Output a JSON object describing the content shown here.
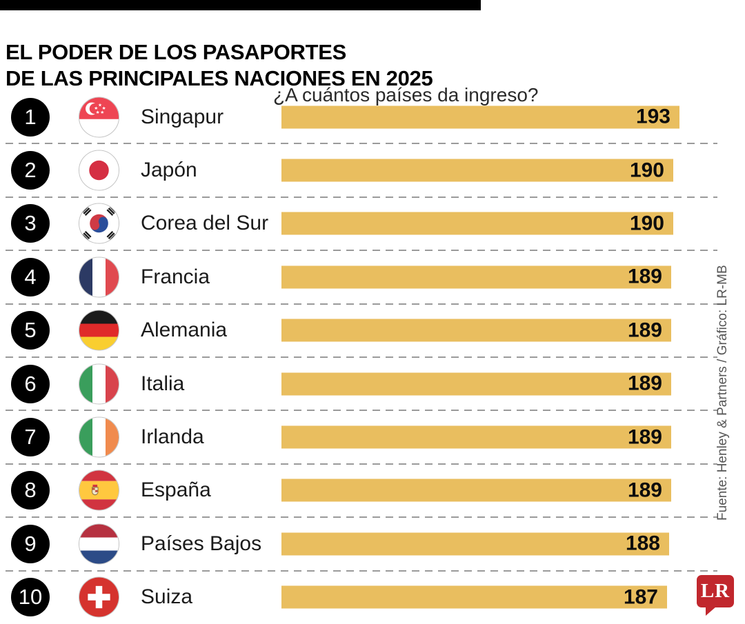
{
  "header": {
    "title_line1": "EL PODER DE LOS PASAPORTES",
    "title_line2": "DE LAS PRINCIPALES NACIONES EN 2025",
    "subtitle": "¿A cuántos países da ingreso?"
  },
  "chart_data": {
    "type": "bar",
    "orientation": "horizontal",
    "title": "El poder de los pasaportes de las principales naciones en 2025",
    "xlabel": "¿A cuántos países da ingreso?",
    "value_range": [
      0,
      193
    ],
    "bar_color": "#E9BE5F",
    "grid": false,
    "legend": false,
    "categories": [
      "Singapur",
      "Japón",
      "Corea del Sur",
      "Francia",
      "Alemania",
      "Italia",
      "Irlanda",
      "España",
      "Países Bajos",
      "Suiza"
    ],
    "values": [
      193,
      190,
      190,
      189,
      189,
      189,
      189,
      189,
      188,
      187
    ],
    "rows": [
      {
        "rank": 1,
        "country": "Singapur",
        "flag": "singapore",
        "value": 193
      },
      {
        "rank": 2,
        "country": "Japón",
        "flag": "japan",
        "value": 190
      },
      {
        "rank": 3,
        "country": "Corea del Sur",
        "flag": "south-korea",
        "value": 190
      },
      {
        "rank": 4,
        "country": "Francia",
        "flag": "france",
        "value": 189
      },
      {
        "rank": 5,
        "country": "Alemania",
        "flag": "germany",
        "value": 189
      },
      {
        "rank": 6,
        "country": "Italia",
        "flag": "italy",
        "value": 189
      },
      {
        "rank": 7,
        "country": "Irlanda",
        "flag": "ireland",
        "value": 189
      },
      {
        "rank": 8,
        "country": "España",
        "flag": "spain",
        "value": 189
      },
      {
        "rank": 9,
        "country": "Países Bajos",
        "flag": "netherlands",
        "value": 188
      },
      {
        "rank": 10,
        "country": "Suiza",
        "flag": "switzerland",
        "value": 187
      }
    ]
  },
  "footer": {
    "source_credit": "Fuente: Henley & Partners / Gráfico: LR-MB",
    "logo_text": "LR",
    "logo_color": "#C1272D"
  }
}
